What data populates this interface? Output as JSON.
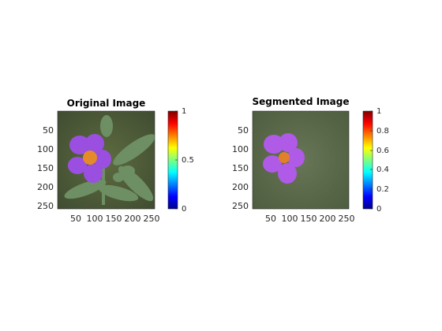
{
  "figure": {
    "background": "#ffffff",
    "axis_color": "#262626"
  },
  "chart_data": [
    {
      "type": "image",
      "title": "Original Image",
      "x_ticks": [
        "50",
        "100",
        "150",
        "200",
        "250"
      ],
      "y_ticks": [
        "50",
        "100",
        "150",
        "200",
        "250"
      ],
      "xlim": [
        0.5,
        256.5
      ],
      "ylim": [
        0.5,
        256.5
      ],
      "colorbar": {
        "range": [
          0,
          1
        ],
        "ticks": [
          "0",
          "0.5",
          "1"
        ],
        "colormap": "jet"
      },
      "content": {
        "background_color": "#4f5a38",
        "petal_color": "#9a4fe0",
        "center_color": "#e48a2a",
        "leaf_color": "#6d8f63"
      }
    },
    {
      "type": "image",
      "title": "Segmented Image",
      "x_ticks": [
        "50",
        "100",
        "150",
        "200",
        "250"
      ],
      "y_ticks": [
        "50",
        "100",
        "150",
        "200",
        "250"
      ],
      "xlim": [
        0.5,
        256.5
      ],
      "ylim": [
        0.5,
        256.5
      ],
      "colorbar": {
        "range": [
          0,
          1
        ],
        "ticks": [
          "0",
          "0.2",
          "0.4",
          "0.6",
          "0.8",
          "1"
        ],
        "colormap": "jet"
      },
      "content": {
        "background_color": "#5b6b4a",
        "petal_color": "#b05ae8",
        "center_color": "#e0802a"
      }
    }
  ]
}
